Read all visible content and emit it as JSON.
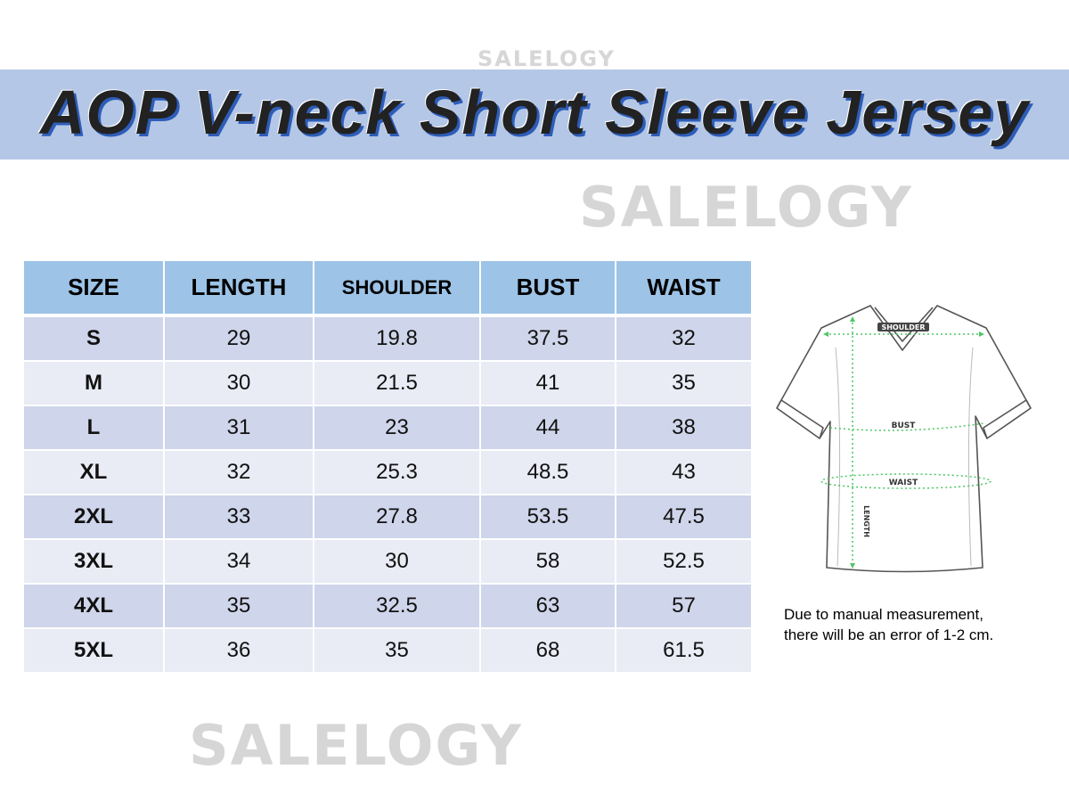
{
  "watermark": "SALELOGY",
  "title": "AOP V-neck Short Sleeve Jersey",
  "colors": {
    "banner": "#b4c7e7",
    "header": "#9dc3e6",
    "row_odd": "#cfd5ea",
    "row_even": "#e9ebf5",
    "measure_line": "#4cc764"
  },
  "table": {
    "headers": [
      "SIZE",
      "LENGTH",
      "SHOULDER",
      "BUST",
      "WAIST"
    ],
    "rows": [
      [
        "S",
        "29",
        "19.8",
        "37.5",
        "32"
      ],
      [
        "M",
        "30",
        "21.5",
        "41",
        "35"
      ],
      [
        "L",
        "31",
        "23",
        "44",
        "38"
      ],
      [
        "XL",
        "32",
        "25.3",
        "48.5",
        "43"
      ],
      [
        "2XL",
        "33",
        "27.8",
        "53.5",
        "47.5"
      ],
      [
        "3XL",
        "34",
        "30",
        "58",
        "52.5"
      ],
      [
        "4XL",
        "35",
        "32.5",
        "63",
        "57"
      ],
      [
        "5XL",
        "36",
        "35",
        "68",
        "61.5"
      ]
    ]
  },
  "diagram": {
    "shoulder": "SHOULDER",
    "bust": "BUST",
    "waist": "WAIST",
    "length": "LENGTH"
  },
  "note": {
    "line1": "Due to manual measurement,",
    "line2": "there will be an error of 1-2 cm."
  }
}
